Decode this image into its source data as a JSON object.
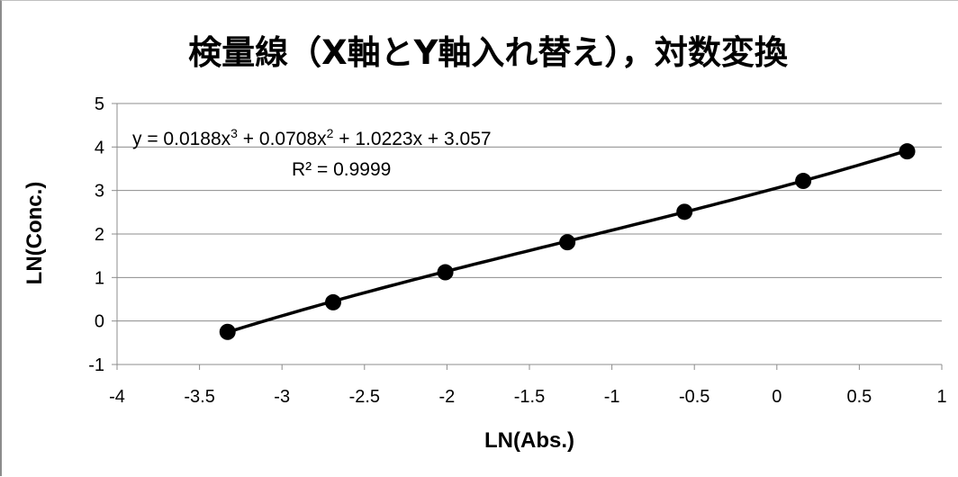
{
  "chart_data": {
    "type": "scatter",
    "title": "検量線（X軸とY軸入れ替え），対数変換",
    "xlabel": "LN(Abs.)",
    "ylabel": "LN(Conc.)",
    "xlim": [
      -4,
      1
    ],
    "ylim": [
      -1,
      5
    ],
    "x_ticks": [
      "-4",
      "-3.5",
      "-3",
      "-2.5",
      "-2",
      "-1.5",
      "-1",
      "-0.5",
      "0",
      "0.5",
      "1"
    ],
    "y_ticks": [
      "-1",
      "0",
      "1",
      "2",
      "3",
      "4",
      "5"
    ],
    "grid": "horizontal",
    "legend": "none",
    "series": [
      {
        "x": [
          -3.33,
          -2.69,
          -2.01,
          -1.27,
          -0.56,
          0.16,
          0.79
        ],
        "y": [
          -0.25,
          0.43,
          1.12,
          1.81,
          2.51,
          3.22,
          3.9
        ],
        "marker": "circle",
        "color": "#000000"
      }
    ],
    "trendline": {
      "type": "polynomial",
      "order": 3,
      "coefficients": [
        0.0188,
        0.0708,
        1.0223,
        3.057
      ],
      "color": "#000000"
    },
    "annotations": {
      "equation": {
        "prefix": "y = 0.0188x",
        "exp1": "3",
        "mid1": " + 0.0708x",
        "exp2": "2",
        "suffix": " + 1.0223x + 3.057"
      },
      "r_squared": "R² = 0.9999"
    }
  }
}
